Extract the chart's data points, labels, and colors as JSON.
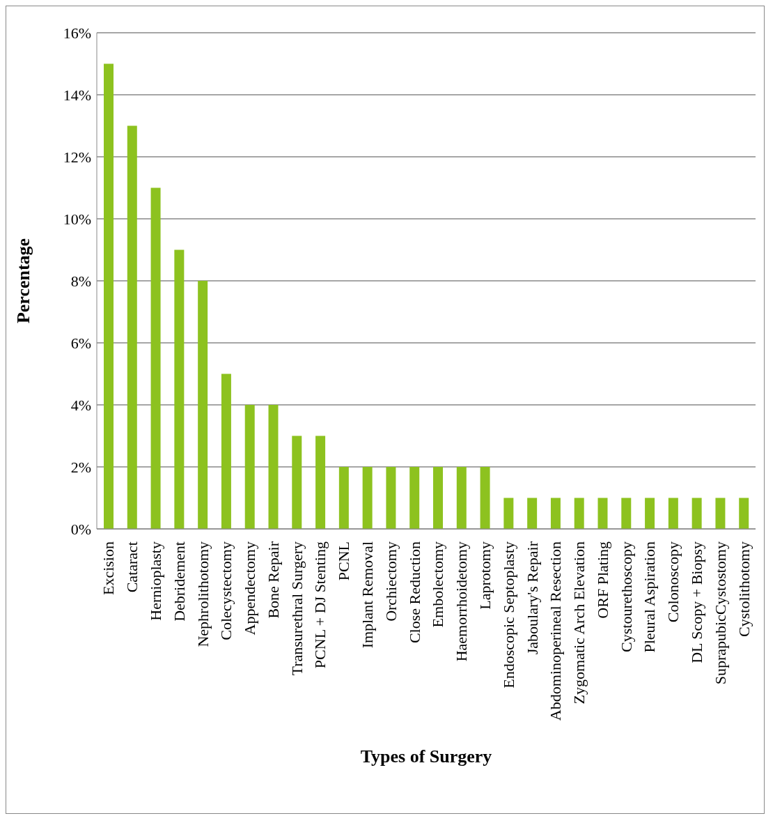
{
  "chart_data": {
    "type": "bar",
    "xlabel": "Types of Surgery",
    "ylabel": "Percentage",
    "categories": [
      "Excision",
      "Cataract",
      "Hernioplasty",
      "Debridement",
      "Nephrolithotomy",
      "Colecystectomy",
      "Appendectomy",
      "Bone Repair",
      "Transurethral Surgery",
      "PCNL + DJ Stenting",
      "PCNL",
      "Implant Removal",
      "Orchiectomy",
      "Close Reduction",
      "Embolectomy",
      "Haemorrhoidetomy",
      "Laprotomy",
      "Endoscopic Septoplasty",
      "Jaboulary's Repair",
      "Abdominoperineal Resection",
      "Zygomatic Arch Elevation",
      "ORF Plating",
      "Cystourethoscopy",
      "Pleural Aspiration",
      "Colonoscopy",
      "DL Scopy + Biopsy",
      "SuprapubicCystostomy",
      "Cystolithotomy"
    ],
    "values": [
      15,
      13,
      11,
      9,
      8,
      5,
      4,
      4,
      3,
      3,
      2,
      2,
      2,
      2,
      2,
      2,
      2,
      1,
      1,
      1,
      1,
      1,
      1,
      1,
      1,
      1,
      1,
      1
    ],
    "color": "#8dc21f",
    "ylim": [
      0,
      16
    ],
    "yticks": [
      {
        "value": 0,
        "label": "0%"
      },
      {
        "value": 2,
        "label": "2%"
      },
      {
        "value": 4,
        "label": "4%"
      },
      {
        "value": 6,
        "label": "6%"
      },
      {
        "value": 8,
        "label": "8%"
      },
      {
        "value": 10,
        "label": "10%"
      },
      {
        "value": 12,
        "label": "12%"
      },
      {
        "value": 14,
        "label": "14%"
      },
      {
        "value": 16,
        "label": "16%"
      }
    ],
    "grid": "y",
    "legend": false
  }
}
